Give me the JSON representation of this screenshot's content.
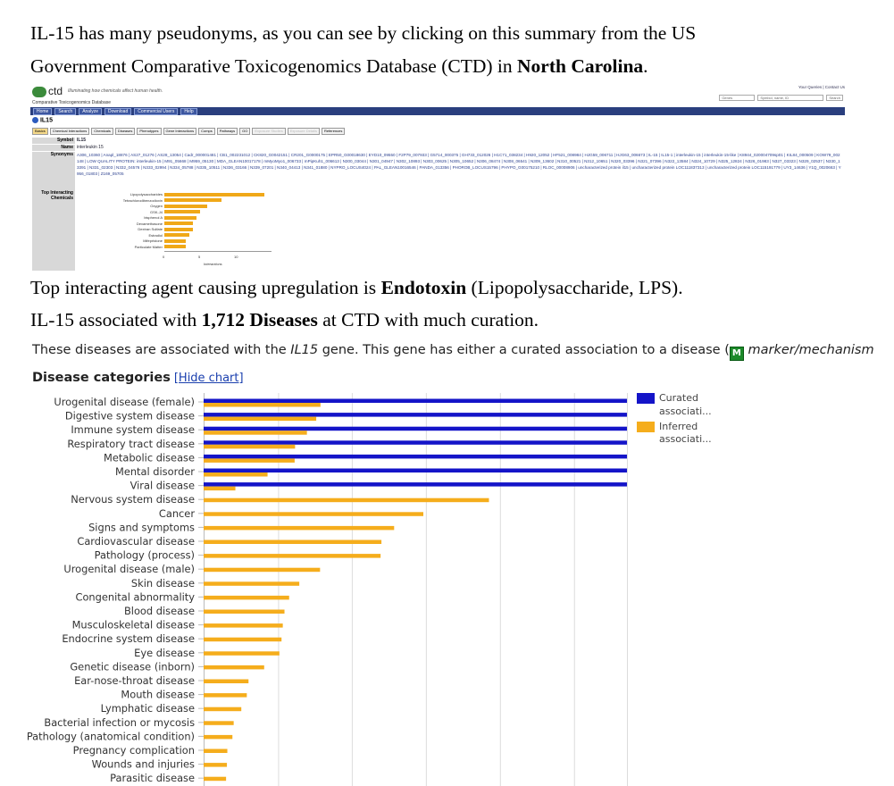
{
  "intro": {
    "line1": "IL-15 has many pseudonyms, as you can see by clicking on this summary from the US",
    "line2_before": "Government Comparative Toxicogenomics Database (CTD) in ",
    "line2_bold": "North Carolina",
    "line2_after": "."
  },
  "ctd_screenshot": {
    "logo_text": "ctd",
    "tagline": "Illuminating how chemicals affect human health.",
    "subtitle": "Comparative Toxicogenomics Database",
    "top_links": "Your Queries | Contact Us",
    "search_scope": "Genes",
    "search_placeholder": "Symbol, name, ID",
    "search_button": "Search",
    "nav": [
      "Home",
      "Search",
      "Analyze",
      "Download",
      "Commercial Users",
      "Help"
    ],
    "gene": "IL15",
    "tabs": [
      "Basics",
      "Chemical Interactions",
      "Chemicals",
      "Diseases",
      "Phenotypes",
      "Gene Interactions",
      "Comps",
      "Pathways",
      "GO",
      "Exposure Studies",
      "Exposure Details",
      "References"
    ],
    "symbol_label": "Symbol",
    "symbol_value": "IL15",
    "name_label": "Name",
    "name_value": "interleukin 15",
    "synonyms_label": "Synonyms",
    "synonyms_value": "A306_10360 | Anapl_18876 | AS27_01276 | AS28_13054 | Cadr_000001481 | CB1_002231012 | CK820_G0042151 | CR201_G0000175 | EPR50_G00018630 | EYD10_09550 | F2P79_007933 | G5714_000375 | GH733_012026 | H1C71_038234 | H920_12052 | HF521_008984 | HJG59_006711 | HJG63_006673 | IL-15 | IL15-1 | interleukin-15 | interleukin-15-like | K8944_020004709sp01 | KIL84_000509 | KOW79_002148 | LOW QUALITY PROTEIN: interleukin-15 | M91_05668 | M959_05130 | MDA_GLEAN10017178 | mMyoMyo1_006733 | mPipKuh1_006613 | N300_03044 | N301_04947 | N302_10893 | N303_00625 | N305_10652 | N306_08474 | N308_06541 | N309_13602 | N310_00521 | N312_10651 | N320_03396 | N321_07396 | N322_13584 | N324_10729 | N325_12824 | N326_01983 | N327_03323 | N329_02537 | N330_13391 | N331_02303 | N332_04576 | N333_02994 | N334_05788 | N335_10511 | N336_03166 | N339_07201 | N340_04413 | N341_01880 | NYPRO_LOCUS4024 | PAL_GLEAN10016546 | PANDA_013356 | PHOROB_LOCUS15796 | PHYPO_G00175210 | RLOC_00008906 | uncharacterized protein il15 | uncharacterized protein LOC111837313 | uncharacterized protein LOC115191779 | UY3_14636 | Y1Q_0020663 | Y956_01803 | Z169_05705",
    "top_chem_label": "Top Interacting Chemicals",
    "mini_chart": {
      "type": "bar",
      "categories": [
        "Lipopolysaccharides",
        "Tetrachlorodibenzodioxin",
        "Oxygen",
        "GSK-J4",
        "bisphenol A",
        "Dexamethasone",
        "Dextran Sulfate",
        "Estradiol",
        "Mifepristone",
        "Particulate Matter"
      ],
      "values": [
        14,
        8,
        6,
        5,
        4.5,
        4,
        4,
        3.5,
        3,
        3
      ],
      "xlabel": "Interactions",
      "ticks": [
        0,
        5,
        10
      ],
      "xlim": [
        0,
        15
      ]
    }
  },
  "para2": {
    "before": "Top interacting agent causing upregulation is ",
    "bold": "Endotoxin",
    "after": " (Lipopolysaccharide, LPS)."
  },
  "para3": {
    "before": "IL-15 associated with ",
    "bold": "1,712 Diseases",
    "after": " at CTD with much curation."
  },
  "disease_line": {
    "text_before": "These diseases are associated with the ",
    "gene": "IL15",
    "text_after": " gene. This gene has either a curated association to a disease (",
    "badge": "M",
    "badge_text": " marker/mechanism"
  },
  "chart_header": {
    "title": "Disease categories",
    "hide_link": "[Hide chart]"
  },
  "colors": {
    "curated": "#1414c8",
    "inferred": "#f5ad1c"
  },
  "chart_data": {
    "type": "bar",
    "orientation": "horizontal",
    "categories": [
      "Urogenital disease (female)",
      "Digestive system disease",
      "Immune system disease",
      "Respiratory tract disease",
      "Metabolic disease",
      "Mental disorder",
      "Viral disease",
      "Nervous system disease",
      "Cancer",
      "Signs and symptoms",
      "Cardiovascular disease",
      "Pathology (process)",
      "Urogenital disease (male)",
      "Skin disease",
      "Congenital abnormality",
      "Blood disease",
      "Musculoskeletal disease",
      "Endocrine system disease",
      "Eye disease",
      "Genetic disease (inborn)",
      "Ear-nose-throat disease",
      "Mouth disease",
      "Lymphatic disease",
      "Bacterial infection or mycosis",
      "Pathology (anatomical condition)",
      "Pregnancy complication",
      "Wounds and injuries",
      "Parasitic disease"
    ],
    "series": [
      {
        "name": "Curated associati...",
        "values": [
          1,
          1,
          1,
          1,
          1,
          1,
          1,
          0,
          0,
          0,
          0,
          0,
          0,
          0,
          0,
          0,
          0,
          0,
          0,
          0,
          0,
          0,
          0,
          0,
          0,
          0,
          0,
          0
        ]
      },
      {
        "name": "Inferred associati...",
        "values": [
          276,
          266,
          244,
          216,
          215,
          151,
          75,
          674,
          519,
          450,
          420,
          418,
          275,
          226,
          202,
          191,
          187,
          184,
          179,
          143,
          106,
          102,
          89,
          71,
          68,
          56,
          55,
          53
        ]
      }
    ],
    "curated_scale_note": "curated bars extend to full axis width",
    "xlim": [
      0,
      1000
    ],
    "legend": "top-right"
  }
}
